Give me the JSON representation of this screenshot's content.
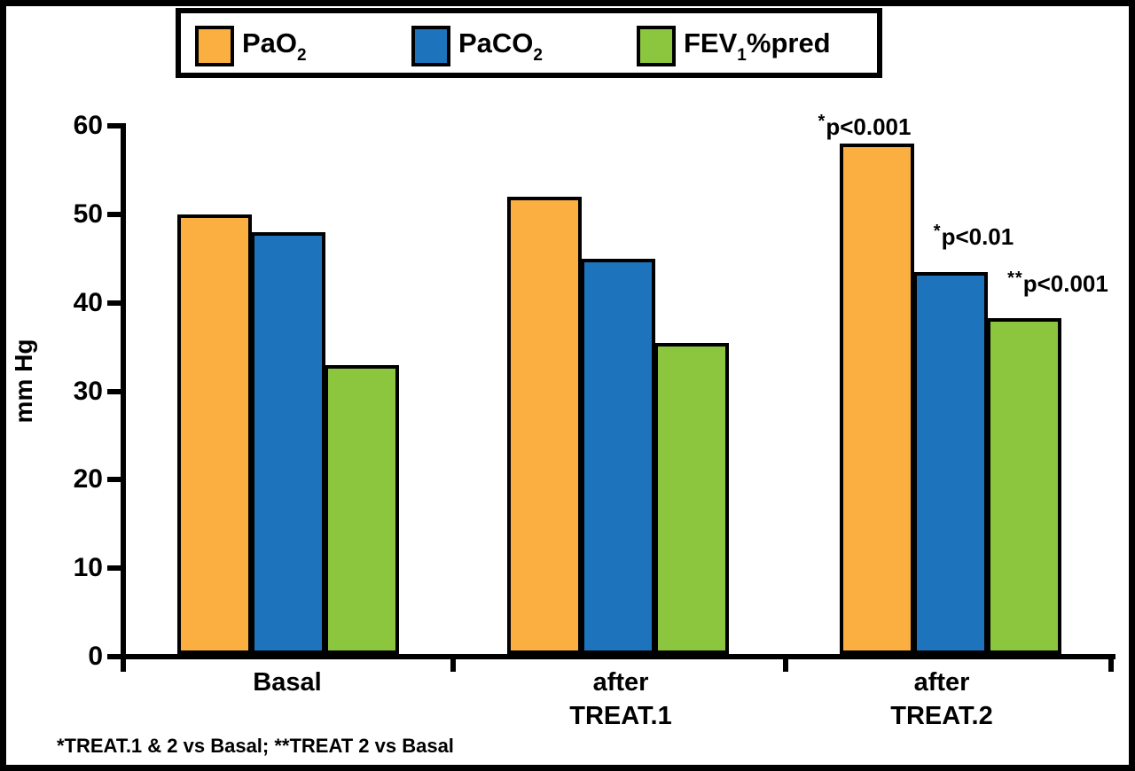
{
  "chart_data": {
    "type": "bar",
    "title": "",
    "ylabel": "mm Hg",
    "ylim": [
      0,
      60
    ],
    "ytick_step": 10,
    "grid": false,
    "legend_position": "top",
    "categories": [
      "Basal",
      "after TREAT.1",
      "after TREAT.2"
    ],
    "category_lines": [
      [
        "Basal"
      ],
      [
        "after",
        "TREAT.1"
      ],
      [
        "after",
        "TREAT.2"
      ]
    ],
    "series": [
      {
        "name": "PaO2",
        "label": {
          "main": "PaO",
          "sub": "2",
          "suffix": ""
        },
        "color": "#FAAF40",
        "values": [
          50,
          52,
          58
        ]
      },
      {
        "name": "PaCO2",
        "label": {
          "main": "PaCO",
          "sub": "2",
          "suffix": ""
        },
        "color": "#1E74BC",
        "values": [
          48,
          45,
          43.5
        ]
      },
      {
        "name": "FEV1%pred",
        "label": {
          "main": "FEV",
          "sub": "1",
          "suffix": "%pred"
        },
        "color": "#8CC63F",
        "values": [
          33,
          35.5,
          38.3
        ]
      }
    ],
    "annotations": [
      {
        "stars": "*",
        "text": "p<0.001",
        "group": 2,
        "series": 0
      },
      {
        "stars": "*",
        "text": "p<0.01",
        "group": 2,
        "series": 1
      },
      {
        "stars": "**",
        "text": "p<0.001",
        "group": 2,
        "series": 2
      }
    ],
    "footnote": "*TREAT.1 & 2 vs Basal; **TREAT 2 vs Basal"
  },
  "colors": {
    "bar_outline": "#000000",
    "axis": "#000000",
    "background": "#FFFFFF",
    "frame_border": "#000000"
  }
}
